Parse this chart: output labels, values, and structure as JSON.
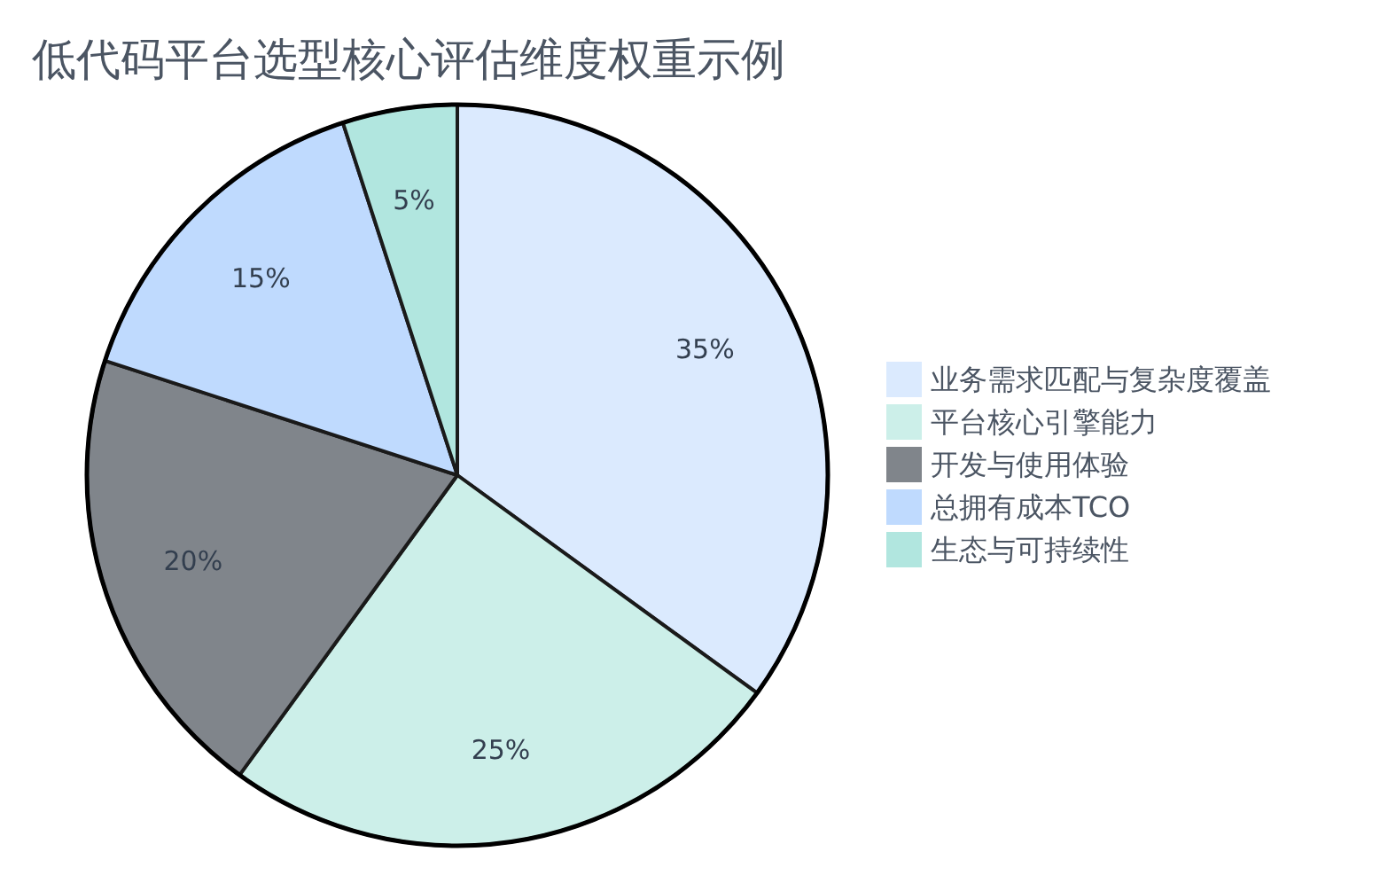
{
  "chart_data": {
    "type": "pie",
    "title": "低代码平台选型核心评估维度权重示例",
    "categories": [
      "业务需求匹配与复杂度覆盖",
      "平台核心引擎能力",
      "开发与使用体验",
      "总拥有成本TCO",
      "生态与可持续性"
    ],
    "values": [
      35,
      25,
      20,
      15,
      5
    ],
    "colors": [
      "#dbeafe",
      "#ccefe9",
      "#80858b",
      "#bfdafe",
      "#b1e6df"
    ],
    "value_labels": [
      "35%",
      "25%",
      "20%",
      "15%",
      "5%"
    ],
    "legend": "right"
  }
}
